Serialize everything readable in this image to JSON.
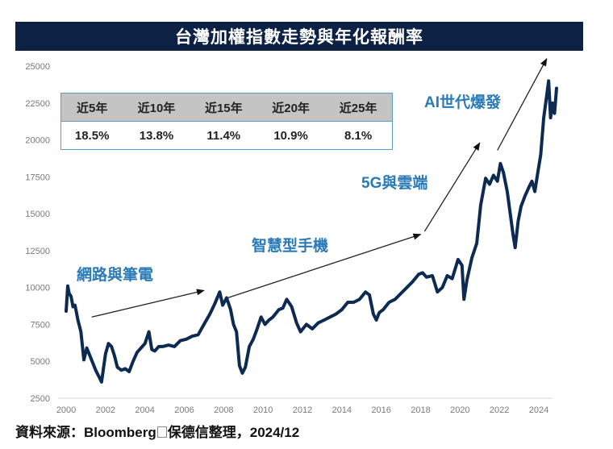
{
  "header": {
    "title": "台灣加權指數走勢與年化報酬率"
  },
  "returns_table": {
    "headers": [
      "近5年",
      "近10年",
      "近15年",
      "近20年",
      "近25年"
    ],
    "values": [
      "18.5%",
      "13.8%",
      "11.4%",
      "10.9%",
      "8.1%"
    ]
  },
  "annotations": [
    {
      "label": "網路與筆電"
    },
    {
      "label": "智慧型手機"
    },
    {
      "label": "5G與雲端"
    },
    {
      "label": "AI世代爆發"
    }
  ],
  "source": {
    "prefix": "資料來源：Bloomberg",
    "suffix": "保德信整理，2024/12"
  },
  "colors": {
    "title_bg": "#0d2144",
    "line": "#0d2a52",
    "annotation": "#2a7ab8",
    "table_border": "#5b9bd5",
    "table_header_bg": "#c4c4c4"
  },
  "chart_data": {
    "type": "line",
    "title": "台灣加權指數走勢與年化報酬率",
    "xlabel": "",
    "ylabel": "",
    "xlim": [
      2000,
      2025
    ],
    "ylim": [
      2500,
      25000
    ],
    "x_ticks": [
      "2000",
      "2002",
      "2004",
      "2006",
      "2008",
      "2010",
      "2012",
      "2014",
      "2016",
      "2018",
      "2020",
      "2022",
      "2024"
    ],
    "y_ticks": [
      "2500",
      "5000",
      "7500",
      "10000",
      "12500",
      "15000",
      "17500",
      "20000",
      "22500",
      "25000"
    ],
    "grid": false,
    "series": [
      {
        "name": "台灣加權指數",
        "x": [
          2000.0,
          2000.08,
          2000.15,
          2000.25,
          2000.35,
          2000.45,
          2000.6,
          2000.75,
          2000.9,
          2001.05,
          2001.2,
          2001.35,
          2001.5,
          2001.65,
          2001.8,
          2002.0,
          2002.15,
          2002.3,
          2002.45,
          2002.6,
          2002.8,
          2003.0,
          2003.2,
          2003.4,
          2003.6,
          2003.8,
          2004.0,
          2004.2,
          2004.35,
          2004.5,
          2004.7,
          2004.9,
          2005.2,
          2005.5,
          2005.8,
          2006.1,
          2006.4,
          2006.7,
          2007.0,
          2007.3,
          2007.55,
          2007.8,
          2007.95,
          2008.15,
          2008.35,
          2008.5,
          2008.65,
          2008.8,
          2008.95,
          2009.1,
          2009.3,
          2009.5,
          2009.7,
          2009.9,
          2010.1,
          2010.3,
          2010.5,
          2010.8,
          2011.0,
          2011.2,
          2011.45,
          2011.7,
          2011.9,
          2012.2,
          2012.5,
          2012.8,
          2013.1,
          2013.4,
          2013.7,
          2014.0,
          2014.3,
          2014.6,
          2014.9,
          2015.2,
          2015.4,
          2015.6,
          2015.75,
          2015.9,
          2016.1,
          2016.4,
          2016.7,
          2017.0,
          2017.3,
          2017.6,
          2017.9,
          2018.1,
          2018.3,
          2018.6,
          2018.85,
          2019.1,
          2019.35,
          2019.6,
          2019.9,
          2020.1,
          2020.2,
          2020.35,
          2020.6,
          2020.85,
          2021.05,
          2021.3,
          2021.5,
          2021.7,
          2021.9,
          2022.05,
          2022.2,
          2022.4,
          2022.55,
          2022.7,
          2022.8,
          2022.95,
          2023.1,
          2023.3,
          2023.5,
          2023.65,
          2023.8,
          2023.95,
          2024.1,
          2024.25,
          2024.4,
          2024.5,
          2024.6,
          2024.7,
          2024.8,
          2024.9
        ],
        "values": [
          8400,
          10100,
          9600,
          9400,
          8700,
          8800,
          7800,
          7000,
          5100,
          5900,
          5400,
          4900,
          4400,
          4000,
          3600,
          5500,
          6200,
          6000,
          5400,
          4600,
          4400,
          4500,
          4300,
          5000,
          5600,
          5900,
          6200,
          7000,
          5800,
          5700,
          6000,
          6000,
          6100,
          6000,
          6400,
          6500,
          6700,
          6800,
          7500,
          8200,
          8900,
          9700,
          8800,
          9300,
          8500,
          7500,
          7000,
          4700,
          4200,
          4600,
          6000,
          6500,
          7200,
          8000,
          7500,
          7800,
          8000,
          8500,
          8600,
          9200,
          8700,
          7600,
          7000,
          7500,
          7200,
          7600,
          7800,
          8000,
          8200,
          8500,
          9000,
          9000,
          9200,
          9700,
          9500,
          8200,
          7800,
          8300,
          8500,
          9000,
          9200,
          9600,
          10000,
          10400,
          10900,
          11000,
          10700,
          10800,
          9700,
          10000,
          10800,
          10600,
          11900,
          11500,
          9200,
          10500,
          12000,
          13000,
          15600,
          17400,
          17000,
          17600,
          17200,
          18400,
          17800,
          16500,
          15000,
          13500,
          12700,
          14500,
          15500,
          16200,
          16800,
          17200,
          16500,
          17800,
          19000,
          21500,
          23000,
          24000,
          21500,
          22500,
          21800,
          23500
        ]
      }
    ],
    "annotations": [
      {
        "text": "網路與筆電",
        "arrow_from": [
          2001.3,
          8000
        ],
        "arrow_to": [
          2007.0,
          9800
        ]
      },
      {
        "text": "智慧型手機",
        "arrow_from": [
          2008.2,
          9300
        ],
        "arrow_to": [
          2018.0,
          13600
        ]
      },
      {
        "text": "5G與雲端",
        "arrow_from": [
          2018.2,
          13800
        ],
        "arrow_to": [
          2021.0,
          19800
        ]
      },
      {
        "text": "AI世代爆發",
        "arrow_from": [
          2021.9,
          19300
        ],
        "arrow_to": [
          2024.4,
          25500
        ]
      }
    ],
    "table": {
      "headers": [
        "近5年",
        "近10年",
        "近15年",
        "近20年",
        "近25年"
      ],
      "values": [
        "18.5%",
        "13.8%",
        "11.4%",
        "10.9%",
        "8.1%"
      ]
    },
    "source": "資料來源：Bloomberg□保德信整理，2024/12"
  }
}
